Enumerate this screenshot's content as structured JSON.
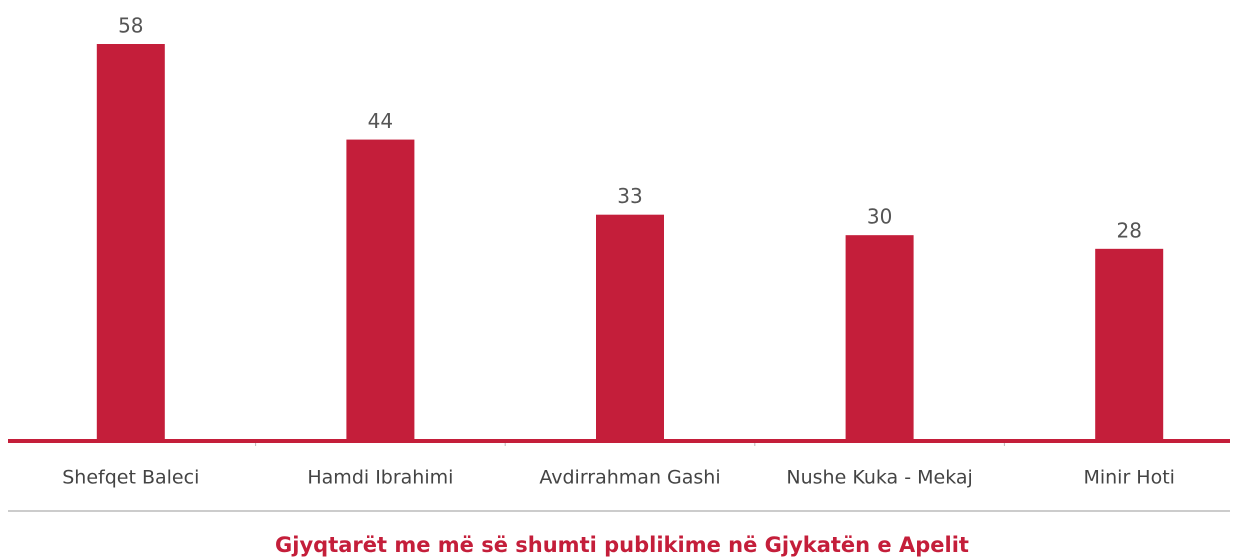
{
  "chart_data": {
    "type": "bar",
    "title": "Gjyqtarët me më së shumti publikime në Gjykatën e Apelit",
    "categories": [
      "Shefqet Baleci",
      "Hamdi Ibrahimi",
      "Avdirrahman Gashi",
      "Nushe Kuka - Mekaj",
      "Minir Hoti"
    ],
    "values": [
      58,
      44,
      33,
      30,
      28
    ],
    "color": "#c41e3a"
  }
}
